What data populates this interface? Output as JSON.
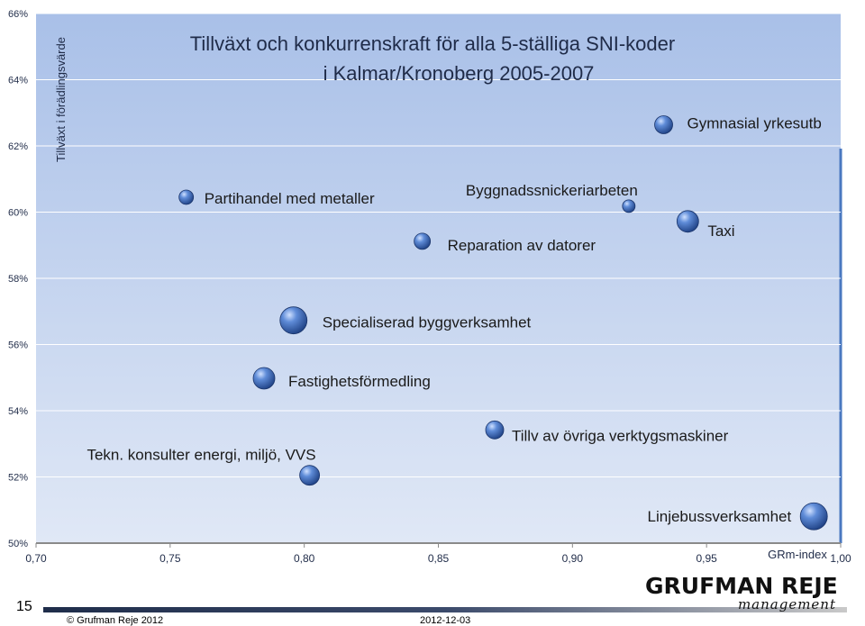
{
  "chart_data": {
    "type": "scatter",
    "title": "Tillväxt och konkurrenskraft för alla 5-ställiga SNI-koder",
    "subtitle": "i Kalmar/Kronoberg 2005-2007",
    "ylabel": "Tillväxt i förädlingsvärde",
    "xlabel": "GRm-index",
    "xlim": [
      0.7,
      1.0
    ],
    "ylim": [
      0.5,
      0.66
    ],
    "x_ticks": [
      "0,70",
      "0,75",
      "0,80",
      "0,85",
      "0,90",
      "0,95",
      "1,00"
    ],
    "y_ticks": [
      "50%",
      "52%",
      "54%",
      "56%",
      "58%",
      "60%",
      "62%",
      "64%",
      "66%"
    ],
    "grid": "horizontal",
    "colors": {
      "plot_top": "#aec3e8",
      "plot_bottom": "#dfe7f5",
      "bubble": "#3f68b0",
      "grid": "#ffffff"
    },
    "points": [
      {
        "label": "Partihandel med metaller",
        "x": 0.756,
        "y": 0.6045,
        "size": 8
      },
      {
        "label": "Byggnadssnickeriarbeten",
        "x": 0.921,
        "y": 0.6018,
        "size": 7
      },
      {
        "label": "Reparation av datorer",
        "x": 0.844,
        "y": 0.5912,
        "size": 9
      },
      {
        "label": "Gymnasial yrkesutb",
        "x": 0.934,
        "y": 0.6264,
        "size": 10
      },
      {
        "label": "Taxi",
        "x": 0.943,
        "y": 0.5972,
        "size": 12
      },
      {
        "label": "Specialiserad byggverksamhet",
        "x": 0.796,
        "y": 0.5673,
        "size": 15
      },
      {
        "label": "Fastighetsförmedling",
        "x": 0.785,
        "y": 0.5498,
        "size": 12
      },
      {
        "label": "Tillv av övriga verktygsmaskiner",
        "x": 0.871,
        "y": 0.5342,
        "size": 10
      },
      {
        "label": "Tekn. konsulter energi, miljö, VVS",
        "x": 0.802,
        "y": 0.5205,
        "size": 11
      },
      {
        "label": "Linjebussverksamhet",
        "x": 0.99,
        "y": 0.5081,
        "size": 15
      }
    ]
  },
  "footer": {
    "slide_number": "15",
    "copyright": "© Grufman Reje 2012",
    "date": "2012-12-03",
    "logo_main": "GRUFMAN REJE",
    "logo_sub": "management"
  }
}
